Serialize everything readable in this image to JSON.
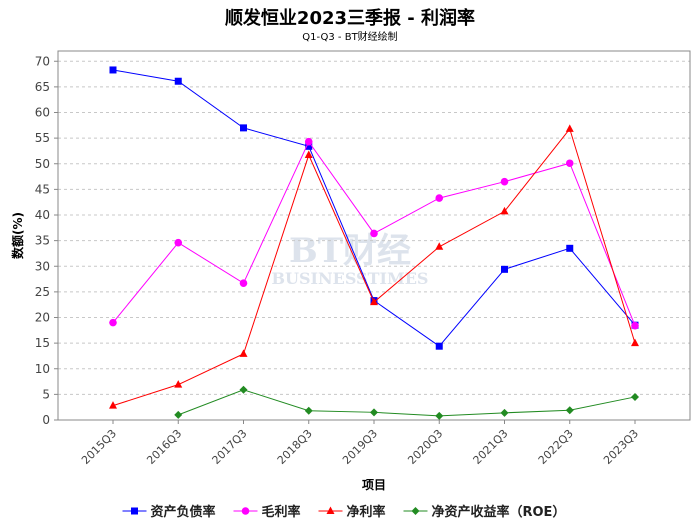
{
  "chart_data": {
    "type": "line",
    "title": "顺发恒业2023三季报 - 利润率",
    "subtitle": "Q1-Q3 - BT财经绘制",
    "xlabel": "项目",
    "ylabel": "数额(%)",
    "ylim": [
      0,
      72
    ],
    "yticks": [
      0,
      5,
      10,
      15,
      20,
      25,
      30,
      35,
      40,
      45,
      50,
      55,
      60,
      65,
      70
    ],
    "categories": [
      "2015Q3",
      "2016Q3",
      "2017Q3",
      "2018Q3",
      "2019Q3",
      "2020Q3",
      "2021Q3",
      "2022Q3",
      "2023Q3"
    ],
    "grid": true,
    "legend_position": "bottom",
    "watermark": "BT财经 BUSINESSTIMES",
    "series": [
      {
        "name": "资产负债率",
        "color": "#0000ff",
        "marker": "square",
        "values": [
          68.3,
          66.1,
          57.0,
          53.4,
          23.3,
          14.4,
          29.4,
          33.5,
          18.5
        ]
      },
      {
        "name": "毛利率",
        "color": "#ff00ff",
        "marker": "circle",
        "values": [
          19.0,
          34.6,
          26.7,
          54.3,
          36.4,
          43.3,
          46.5,
          50.1,
          18.4
        ]
      },
      {
        "name": "净利率",
        "color": "#ff0000",
        "marker": "triangle",
        "values": [
          2.8,
          6.9,
          12.9,
          51.7,
          23.0,
          33.8,
          40.7,
          56.8,
          15.0
        ]
      },
      {
        "name": "净资产收益率（ROE）",
        "color": "#228b22",
        "marker": "diamond",
        "values": [
          null,
          1.0,
          5.9,
          1.8,
          1.5,
          0.8,
          1.4,
          1.9,
          4.5
        ]
      }
    ]
  }
}
